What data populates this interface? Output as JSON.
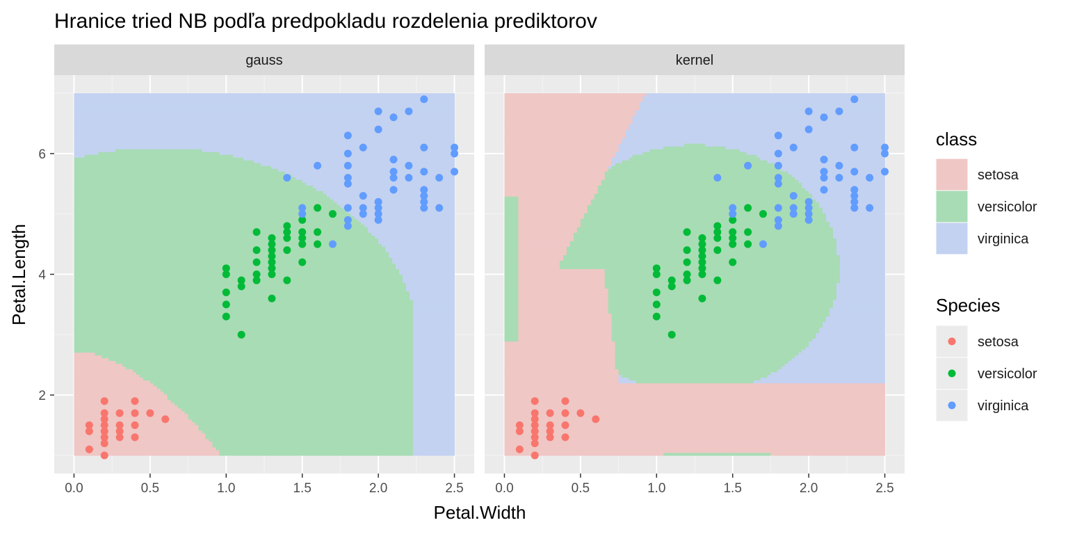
{
  "chart_data": {
    "type": "scatter",
    "title": "Hranice tried NB podľa predpokladu rozdelenia prediktorov",
    "xlabel": "Petal.Width",
    "ylabel": "Petal.Length",
    "xlim": [
      -0.13,
      2.63
    ],
    "ylim": [
      0.7,
      7.3
    ],
    "x_ticks": [
      "0.0",
      "0.5",
      "1.0",
      "1.5",
      "2.0",
      "2.5"
    ],
    "y_ticks": [
      "2",
      "4",
      "6"
    ],
    "facets": [
      "gauss",
      "kernel"
    ],
    "grid": true,
    "legend_position": "right",
    "legends": {
      "class": {
        "title": "class",
        "entries": [
          "setosa",
          "versicolor",
          "virginica"
        ],
        "colors": [
          "#efc7c5",
          "#a8dcb4",
          "#c3d2f1"
        ]
      },
      "species": {
        "title": "Species",
        "entries": [
          "setosa",
          "versicolor",
          "virginica"
        ],
        "colors": [
          "#f8766d",
          "#00ba38",
          "#619cff"
        ]
      }
    },
    "region_grid": {
      "x_range": [
        0.0,
        2.5
      ],
      "y_range": [
        1.0,
        7.0
      ]
    },
    "series": [
      {
        "name": "setosa",
        "points": [
          [
            0.1,
            1.1
          ],
          [
            0.1,
            1.4
          ],
          [
            0.1,
            1.5
          ],
          [
            0.2,
            1.0
          ],
          [
            0.2,
            1.2
          ],
          [
            0.2,
            1.3
          ],
          [
            0.2,
            1.4
          ],
          [
            0.2,
            1.5
          ],
          [
            0.2,
            1.6
          ],
          [
            0.2,
            1.7
          ],
          [
            0.2,
            1.9
          ],
          [
            0.3,
            1.3
          ],
          [
            0.3,
            1.4
          ],
          [
            0.3,
            1.5
          ],
          [
            0.3,
            1.7
          ],
          [
            0.4,
            1.3
          ],
          [
            0.4,
            1.5
          ],
          [
            0.4,
            1.7
          ],
          [
            0.4,
            1.9
          ],
          [
            0.5,
            1.7
          ],
          [
            0.6,
            1.6
          ]
        ]
      },
      {
        "name": "versicolor",
        "points": [
          [
            1.0,
            3.3
          ],
          [
            1.0,
            3.5
          ],
          [
            1.0,
            3.7
          ],
          [
            1.0,
            4.0
          ],
          [
            1.0,
            4.1
          ],
          [
            1.1,
            3.0
          ],
          [
            1.1,
            3.8
          ],
          [
            1.1,
            3.9
          ],
          [
            1.2,
            3.9
          ],
          [
            1.2,
            4.0
          ],
          [
            1.2,
            4.2
          ],
          [
            1.2,
            4.4
          ],
          [
            1.2,
            4.7
          ],
          [
            1.3,
            3.6
          ],
          [
            1.3,
            4.0
          ],
          [
            1.3,
            4.1
          ],
          [
            1.3,
            4.2
          ],
          [
            1.3,
            4.3
          ],
          [
            1.3,
            4.4
          ],
          [
            1.3,
            4.5
          ],
          [
            1.3,
            4.6
          ],
          [
            1.4,
            3.9
          ],
          [
            1.4,
            4.4
          ],
          [
            1.4,
            4.6
          ],
          [
            1.4,
            4.7
          ],
          [
            1.4,
            4.8
          ],
          [
            1.5,
            4.2
          ],
          [
            1.5,
            4.5
          ],
          [
            1.5,
            4.6
          ],
          [
            1.5,
            4.7
          ],
          [
            1.5,
            4.9
          ],
          [
            1.6,
            4.5
          ],
          [
            1.6,
            4.7
          ],
          [
            1.6,
            5.1
          ],
          [
            1.7,
            5.0
          ]
        ]
      },
      {
        "name": "virginica",
        "points": [
          [
            1.4,
            5.6
          ],
          [
            1.5,
            5.0
          ],
          [
            1.5,
            5.1
          ],
          [
            1.6,
            5.8
          ],
          [
            1.7,
            4.5
          ],
          [
            1.8,
            4.8
          ],
          [
            1.8,
            4.9
          ],
          [
            1.8,
            5.1
          ],
          [
            1.8,
            5.5
          ],
          [
            1.8,
            5.6
          ],
          [
            1.8,
            5.8
          ],
          [
            1.8,
            6.0
          ],
          [
            1.8,
            6.3
          ],
          [
            1.9,
            5.0
          ],
          [
            1.9,
            5.1
          ],
          [
            1.9,
            5.3
          ],
          [
            1.9,
            6.1
          ],
          [
            2.0,
            4.9
          ],
          [
            2.0,
            5.0
          ],
          [
            2.0,
            5.1
          ],
          [
            2.0,
            5.2
          ],
          [
            2.0,
            6.4
          ],
          [
            2.0,
            6.7
          ],
          [
            2.1,
            5.4
          ],
          [
            2.1,
            5.6
          ],
          [
            2.1,
            5.7
          ],
          [
            2.1,
            5.9
          ],
          [
            2.1,
            6.6
          ],
          [
            2.2,
            5.6
          ],
          [
            2.2,
            5.8
          ],
          [
            2.2,
            6.7
          ],
          [
            2.3,
            5.1
          ],
          [
            2.3,
            5.2
          ],
          [
            2.3,
            5.3
          ],
          [
            2.3,
            5.4
          ],
          [
            2.3,
            5.7
          ],
          [
            2.3,
            6.1
          ],
          [
            2.3,
            6.9
          ],
          [
            2.4,
            5.1
          ],
          [
            2.4,
            5.6
          ],
          [
            2.5,
            5.7
          ],
          [
            2.5,
            6.0
          ],
          [
            2.5,
            6.1
          ]
        ]
      }
    ]
  }
}
